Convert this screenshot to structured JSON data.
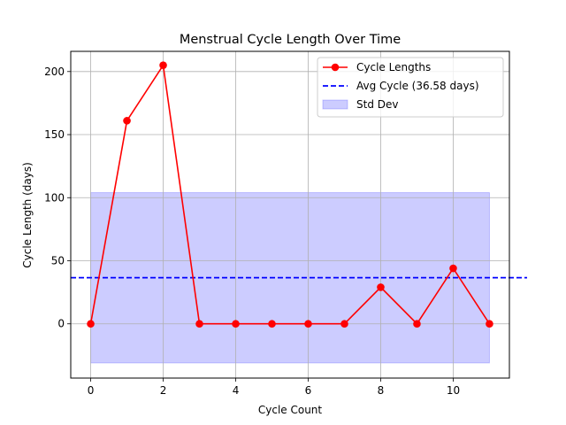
{
  "chart_data": {
    "type": "line",
    "title": "Menstrual Cycle Length Over Time",
    "xlabel": "Cycle Count",
    "ylabel": "Cycle Length (days)",
    "xlim": [
      -0.55,
      11.55
    ],
    "ylim": [
      -43,
      216
    ],
    "xticks": [
      0,
      2,
      4,
      6,
      8,
      10
    ],
    "yticks": [
      0,
      50,
      100,
      150,
      200
    ],
    "grid": true,
    "legend_position": "top-right",
    "series": [
      {
        "name": "Cycle Lengths",
        "type": "line",
        "color": "#ff0000",
        "marker": "circle",
        "x": [
          0,
          1,
          2,
          3,
          4,
          5,
          6,
          7,
          8,
          9,
          10,
          11
        ],
        "y": [
          0,
          161,
          205,
          0,
          0,
          0,
          0,
          0,
          29,
          0,
          44,
          0
        ]
      },
      {
        "name": "Avg Cycle (36.58 days)",
        "type": "hline",
        "color": "#0000ff",
        "style": "dashed",
        "y": 36.58
      },
      {
        "name": "Std Dev",
        "type": "band",
        "color": "#0000ff",
        "x_range": [
          0,
          11
        ],
        "y_range": [
          -31,
          104
        ]
      }
    ]
  }
}
